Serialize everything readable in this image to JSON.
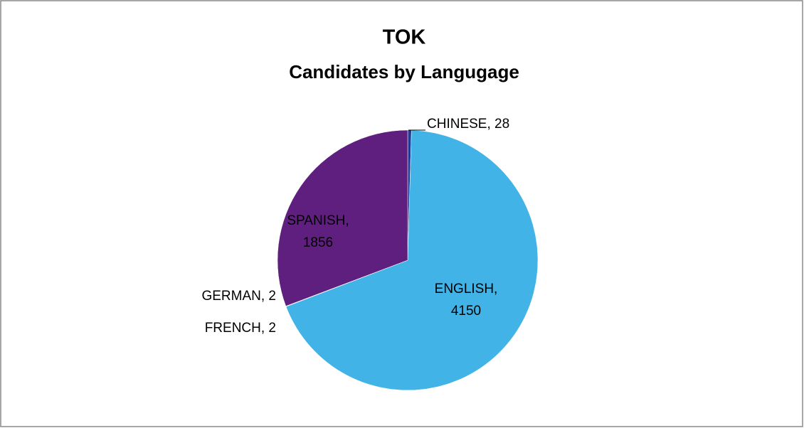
{
  "chart_data": {
    "type": "pie",
    "title": "TOK",
    "subtitle": "Candidates by Langugage",
    "categories": [
      "CHINESE",
      "ENGLISH",
      "FRENCH",
      "GERMAN",
      "SPANISH"
    ],
    "values": [
      28,
      4150,
      2,
      2,
      1856
    ],
    "value_labels": [
      "CHINESE, 28",
      "ENGLISH, 4150",
      "FRENCH, 2",
      "GERMAN, 2",
      "SPANISH, 1856"
    ],
    "colors": [
      "#1f3c96",
      "#41b3e6",
      "#4a7fc0",
      "#9bbb59",
      "#5f1f7e"
    ]
  }
}
